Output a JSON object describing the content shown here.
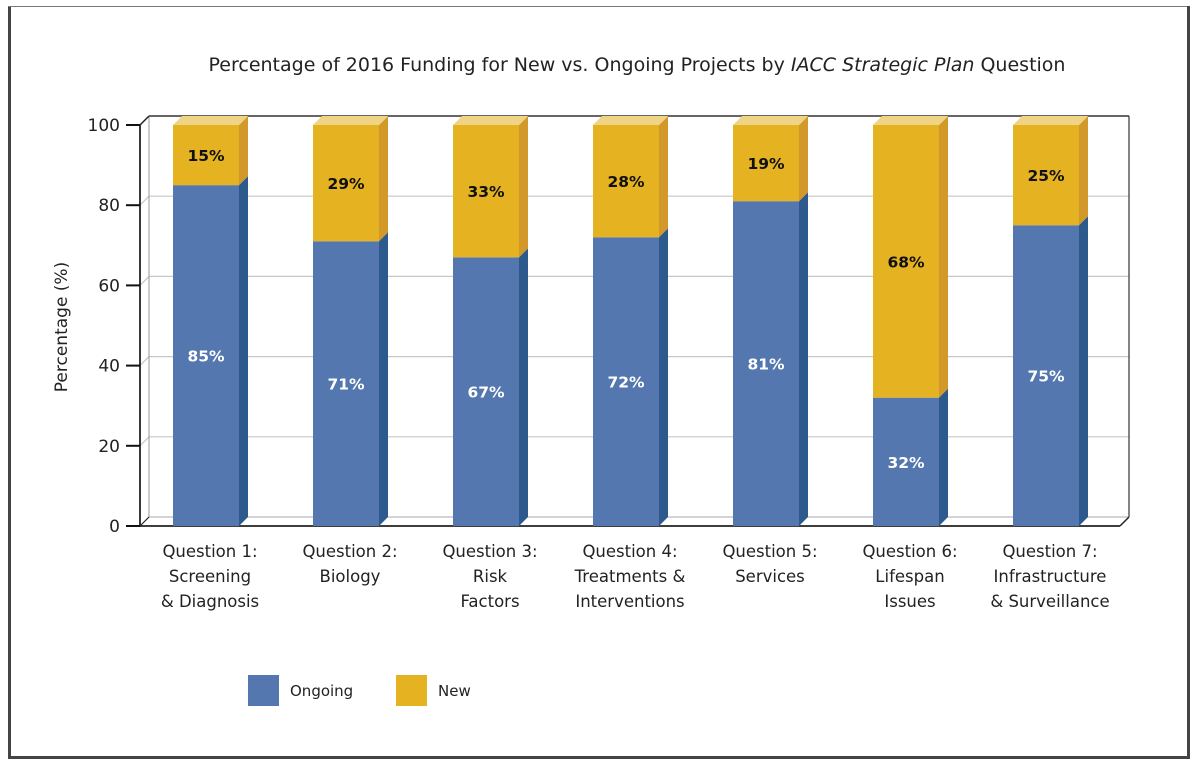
{
  "chart_data": {
    "type": "bar",
    "stacked": true,
    "style": "3d",
    "title_parts": [
      {
        "text": "Percentage of 2016 Funding for New vs. Ongoing Projects by ",
        "italic": false
      },
      {
        "text": "IACC Strategic Plan",
        "italic": true
      },
      {
        "text": " Question",
        "italic": false
      }
    ],
    "title": "Percentage of 2016 Funding for New vs. Ongoing Projects by IACC Strategic Plan Question",
    "xlabel": "",
    "ylabel": "Percentage (%)",
    "ylim": [
      0,
      100
    ],
    "yticks": [
      0,
      20,
      40,
      60,
      80,
      100
    ],
    "grid": true,
    "legend_position": "bottom-left",
    "categories": [
      [
        "Question 1:",
        "Screening",
        "& Diagnosis"
      ],
      [
        "Question 2:",
        "Biology"
      ],
      [
        "Question 3:",
        "Risk",
        "Factors"
      ],
      [
        "Question 4:",
        "Treatments &",
        "Interventions"
      ],
      [
        "Question 5:",
        "Services"
      ],
      [
        "Question 6:",
        "Lifespan",
        "Issues"
      ],
      [
        "Question 7:",
        "Infrastructure",
        "& Surveillance"
      ]
    ],
    "series": [
      {
        "name": "Ongoing",
        "color": "#5377ae",
        "side_color": "#2c5a8c",
        "label_color": "#ffffff",
        "values": [
          85,
          71,
          67,
          72,
          81,
          32,
          75
        ],
        "labels": [
          "85%",
          "71%",
          "67%",
          "72%",
          "81%",
          "32%",
          "75%"
        ]
      },
      {
        "name": "New",
        "color": "#e5b222",
        "side_color": "#d2982a",
        "top_color": "#f0d485",
        "label_color": "#111111",
        "values": [
          15,
          29,
          33,
          28,
          19,
          68,
          25
        ],
        "labels": [
          "15%",
          "29%",
          "33%",
          "28%",
          "19%",
          "68%",
          "25%"
        ]
      }
    ]
  }
}
